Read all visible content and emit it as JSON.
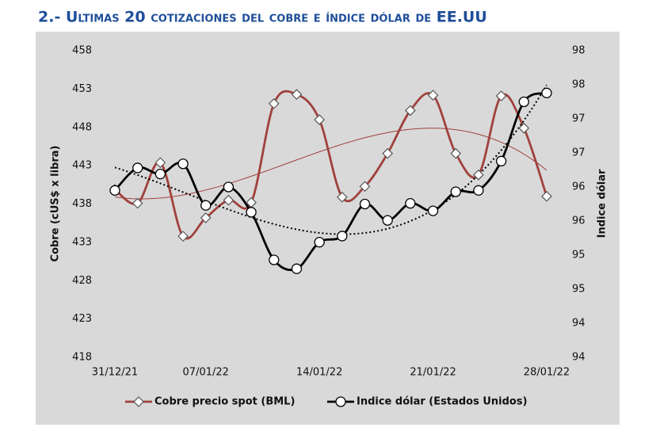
{
  "chart_data": {
    "type": "line",
    "title": "2.- Ultimas 20 cotizaciones del cobre e índice dólar de EE.UU",
    "y_label": "Cobre (cUS$ x libra)",
    "y2_label": "Indice dólar",
    "categories": [
      "31/12/21",
      null,
      null,
      null,
      "07/01/22",
      null,
      null,
      null,
      null,
      "14/01/22",
      null,
      null,
      null,
      null,
      "21/01/22",
      null,
      null,
      null,
      null,
      "28/01/22"
    ],
    "ylim": [
      418,
      458
    ],
    "yticks": [
      418,
      423,
      428,
      433,
      438,
      443,
      448,
      453,
      458
    ],
    "y2lim": [
      93.75,
      98.25
    ],
    "y2ticks": [
      {
        "value": 93.75,
        "label": "94"
      },
      {
        "value": 94.25,
        "label": "94"
      },
      {
        "value": 94.75,
        "label": "95"
      },
      {
        "value": 95.25,
        "label": "95"
      },
      {
        "value": 95.75,
        "label": "96"
      },
      {
        "value": 96.25,
        "label": "96"
      },
      {
        "value": 96.75,
        "label": "97"
      },
      {
        "value": 97.25,
        "label": "97"
      },
      {
        "value": 97.75,
        "label": "98"
      },
      {
        "value": 98.25,
        "label": "98"
      }
    ],
    "grid": false,
    "legend": "bottom",
    "series": [
      {
        "name": "Cobre precio spot (BML)",
        "color": "#a0413c",
        "marker": "diamond",
        "trendline_order": 3,
        "values": [
          439.9,
          438.1,
          443.4,
          433.8,
          436.2,
          438.5,
          438.2,
          451.1,
          452.3,
          449.0,
          438.9,
          440.3,
          444.6,
          450.2,
          452.2,
          444.6,
          441.8,
          452.1,
          447.9,
          439.0
        ]
      },
      {
        "name": "Indice dólar (Estados Unidos)",
        "color": "#000000",
        "marker": "circle",
        "axis": "y2",
        "trendline_order": 3,
        "values": [
          96.2,
          96.53,
          96.44,
          96.59,
          95.98,
          96.25,
          95.88,
          95.18,
          95.05,
          95.44,
          95.53,
          96.0,
          95.76,
          96.01,
          95.9,
          96.18,
          96.2,
          96.63,
          97.5,
          97.63
        ]
      }
    ]
  }
}
